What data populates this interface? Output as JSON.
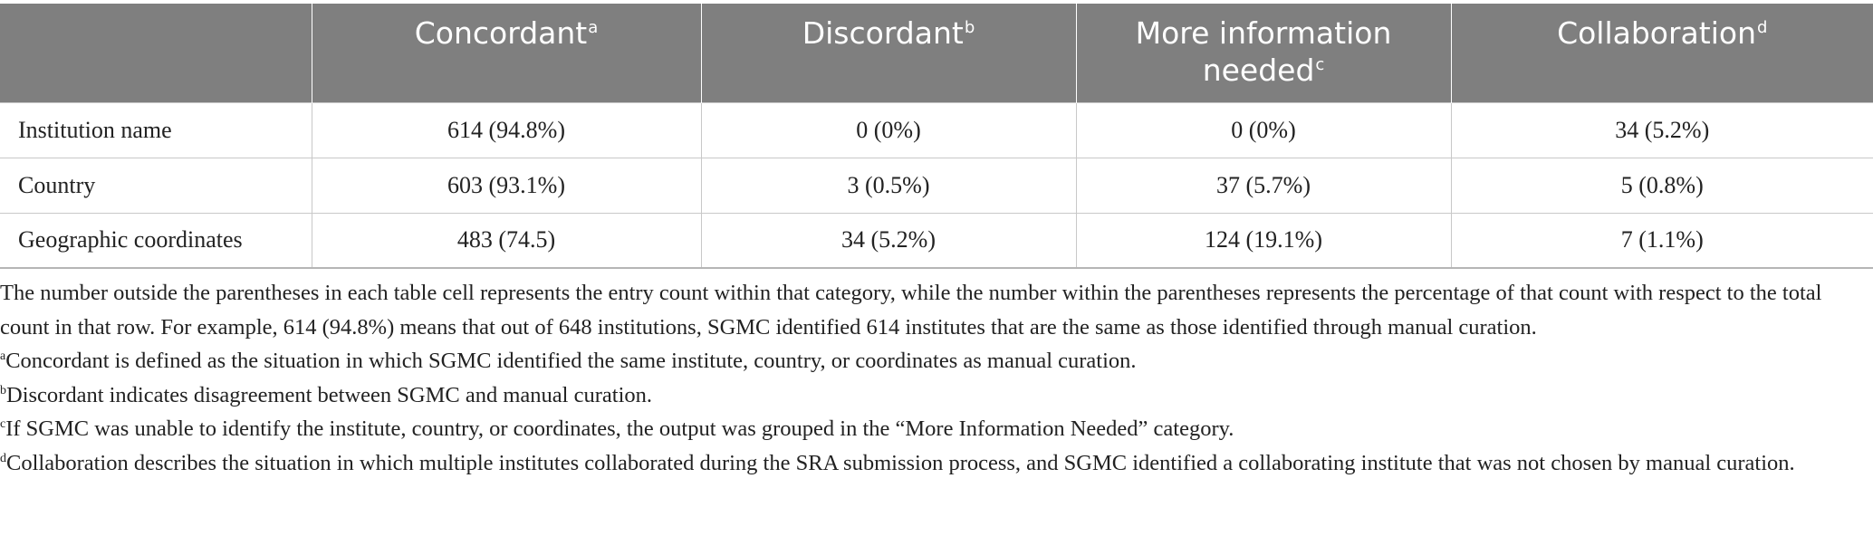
{
  "table": {
    "headers": [
      {
        "label": "",
        "mark": ""
      },
      {
        "label": "Concordant",
        "mark": "a"
      },
      {
        "label": "Discordant",
        "mark": "b"
      },
      {
        "label": "More information needed",
        "mark": "c"
      },
      {
        "label": "Collaboration",
        "mark": "d"
      }
    ],
    "rows": [
      {
        "label": "Institution name",
        "cells": [
          "614 (94.8%)",
          "0 (0%)",
          "0 (0%)",
          "34 (5.2%)"
        ]
      },
      {
        "label": "Country",
        "cells": [
          "603 (93.1%)",
          "3 (0.5%)",
          "37 (5.7%)",
          "5 (0.8%)"
        ]
      },
      {
        "label": "Geographic coordinates",
        "cells": [
          "483 (74.5)",
          "34 (5.2%)",
          "124 (19.1%)",
          "7 (1.1%)"
        ]
      }
    ]
  },
  "footnotes": {
    "intro": "The number outside the parentheses in each table cell represents the entry count within that category, while the number within the parentheses represents the percentage of that count with respect to the total count in that row. For example, 614 (94.8%) means that out of 648 institutions, SGMC identified 614 institutes that are the same as those identified through manual curation.",
    "notes": [
      {
        "mark": "a",
        "text": "Concordant is defined as the situation in which SGMC identified the same institute, country, or coordinates as manual curation."
      },
      {
        "mark": "b",
        "text": "Discordant indicates disagreement between SGMC and manual curation."
      },
      {
        "mark": "c",
        "text": "If SGMC was unable to identify the institute, country, or coordinates, the output was grouped in the “More Information Needed” category."
      },
      {
        "mark": "d",
        "text": "Collaboration describes the situation in which multiple institutes collaborated during the SRA submission process, and SGMC identified a collaborating institute that was not chosen by manual curation."
      }
    ]
  }
}
